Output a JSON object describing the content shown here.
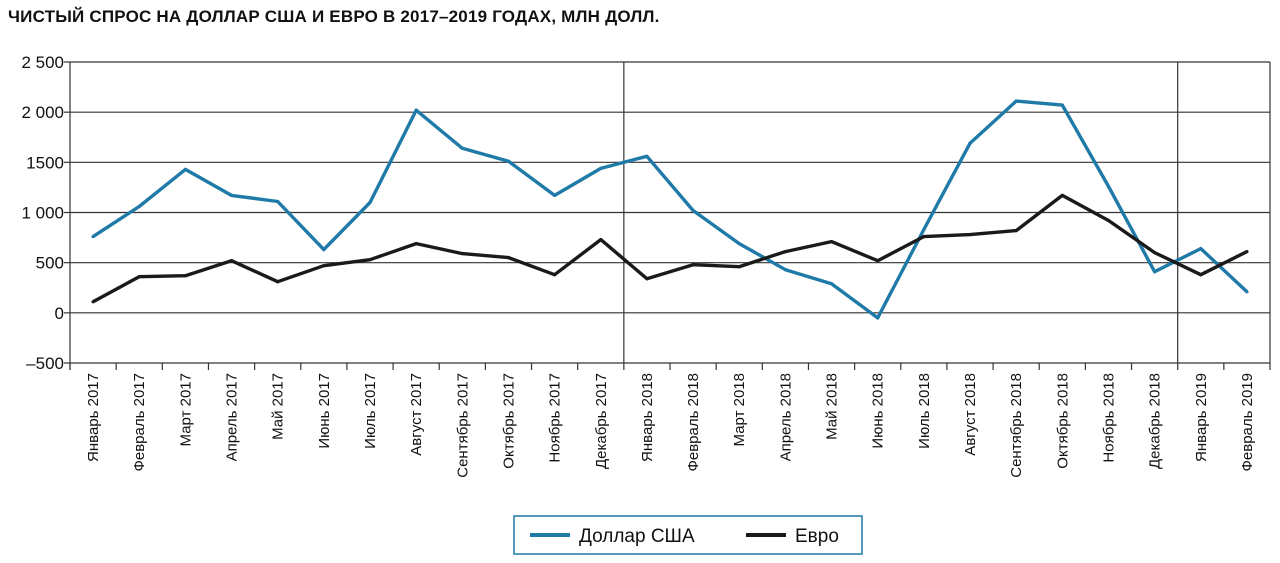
{
  "chart_data": {
    "type": "line",
    "title": "ЧИСТЫЙ СПРОС НА ДОЛЛАР США И ЕВРО В 2017–2019 ГОДАХ, МЛН ДОЛЛ.",
    "xlabel": "",
    "ylabel": "",
    "ylim": [
      -500,
      2500
    ],
    "yticks": [
      -500,
      0,
      500,
      1000,
      1500,
      2000,
      2500
    ],
    "ytick_labels": [
      "–500",
      "0",
      "500",
      "1 000",
      "1500",
      "2 000",
      "2 500"
    ],
    "grid": "horizontal",
    "year_separators_after": [
      "Декабрь 2017",
      "Декабрь 2018"
    ],
    "legend_position": "bottom-center",
    "categories": [
      "Январь 2017",
      "Февраль 2017",
      "Март 2017",
      "Апрель 2017",
      "Май 2017",
      "Июнь 2017",
      "Июль 2017",
      "Август 2017",
      "Сентябрь 2017",
      "Октябрь 2017",
      "Ноябрь 2017",
      "Декабрь 2017",
      "Январь 2018",
      "Февраль 2018",
      "Март 2018",
      "Апрель 2018",
      "Май 2018",
      "Июнь 2018",
      "Июль 2018",
      "Август 2018",
      "Сентябрь 2018",
      "Октябрь 2018",
      "Ноябрь 2018",
      "Декабрь 2018",
      "Январь 2019",
      "Февраль 2019"
    ],
    "series": [
      {
        "name": "Доллар США",
        "color": "#1f7aa8",
        "values": [
          760,
          1060,
          1430,
          1170,
          1110,
          630,
          1100,
          2020,
          1640,
          1510,
          1170,
          1440,
          1560,
          1020,
          690,
          430,
          290,
          -50,
          830,
          1690,
          2110,
          2070,
          1260,
          410,
          640,
          210
        ]
      },
      {
        "name": "Евро",
        "color": "#1a1a1a",
        "values": [
          110,
          360,
          370,
          520,
          310,
          470,
          530,
          690,
          590,
          550,
          380,
          730,
          340,
          480,
          460,
          610,
          710,
          520,
          760,
          780,
          820,
          1170,
          920,
          600,
          380,
          610
        ]
      }
    ]
  }
}
